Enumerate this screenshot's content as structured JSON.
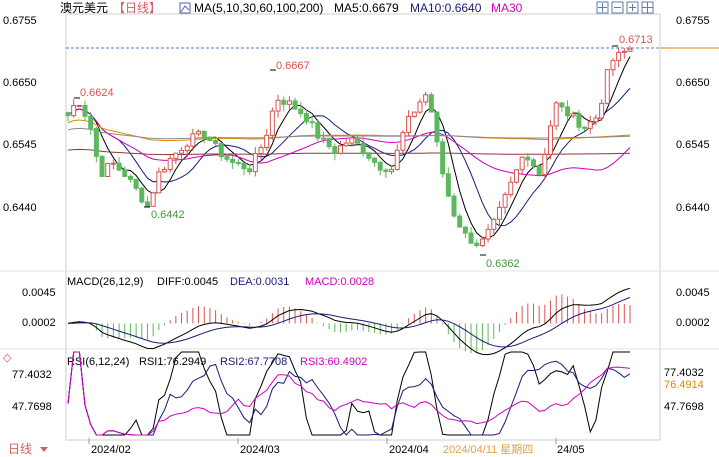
{
  "header": {
    "symbol": "澳元美元",
    "period": "【日线】",
    "ma_label": "MA(5,10,30,60,100,200)",
    "ma5": "MA5:0.6679",
    "ma10": "MA10:0.6640",
    "ma30": "MA30"
  },
  "macd_header": {
    "label": "MACD(26,12,9)",
    "diff": "DIFF:0.0045",
    "dea": "DEA:0.0031",
    "macd": "MACD:0.0028"
  },
  "rsi_header": {
    "label": "RSI(6,12,24)",
    "rsi1": "RSI1:76.2949",
    "rsi2": "RSI2:67.7708",
    "rsi3": "RSI3:60.4902"
  },
  "footer": {
    "period_tab": "日线",
    "cursor_date": "2024/04/11 星期四"
  },
  "colors": {
    "up": "#d9534f",
    "down": "#5cb85c",
    "ma5": "#000000",
    "ma10": "#1a1a7a",
    "ma30": "#d000c0",
    "ma60": "#e08a00",
    "ma100": "#8a8a8a",
    "ma200": "#8b3a3a",
    "rsi3": "#d000c0",
    "price_line": "#e08a00"
  },
  "chart_data": [
    {
      "type": "candlestick",
      "title": "",
      "y_ticks": [
        "0.6755",
        "0.6650",
        "0.6545",
        "0.6440"
      ],
      "ylim": [
        0.632,
        0.678
      ],
      "x_labels": [
        "2024/02",
        "2024/03",
        "2024/04",
        "24/05"
      ],
      "current_price_label": "0.6713",
      "current_price": 0.6713,
      "annotations": [
        {
          "text": "0.6624",
          "value": 0.6624
        },
        {
          "text": "0.6667",
          "value": 0.6667
        },
        {
          "text": "0.6442",
          "value": 0.6442
        },
        {
          "text": "0.6362",
          "value": 0.6362
        },
        {
          "text": "0.6713",
          "value": 0.6713
        }
      ],
      "series": [
        {
          "name": "MA5",
          "value": 0.6679
        },
        {
          "name": "MA10",
          "value": 0.664
        },
        {
          "name": "MA30"
        }
      ]
    },
    {
      "type": "bar",
      "title": "MACD(26,12,9)",
      "y_ticks": [
        "0.0045",
        "0.0002"
      ],
      "ylim": [
        -0.0045,
        0.0055
      ],
      "series": [
        {
          "name": "DIFF",
          "value": 0.0045
        },
        {
          "name": "DEA",
          "value": 0.0031
        },
        {
          "name": "MACD",
          "value": 0.0028
        }
      ]
    },
    {
      "type": "line",
      "title": "RSI(6,12,24)",
      "y_ticks": [
        "77.4032",
        "47.7698"
      ],
      "right_ticks": [
        "77.4032",
        "76.4914",
        "47.7698"
      ],
      "ylim": [
        25,
        90
      ],
      "series": [
        {
          "name": "RSI1",
          "value": 76.2949
        },
        {
          "name": "RSI2",
          "value": 67.7708
        },
        {
          "name": "RSI3",
          "value": 60.4902
        }
      ]
    }
  ]
}
